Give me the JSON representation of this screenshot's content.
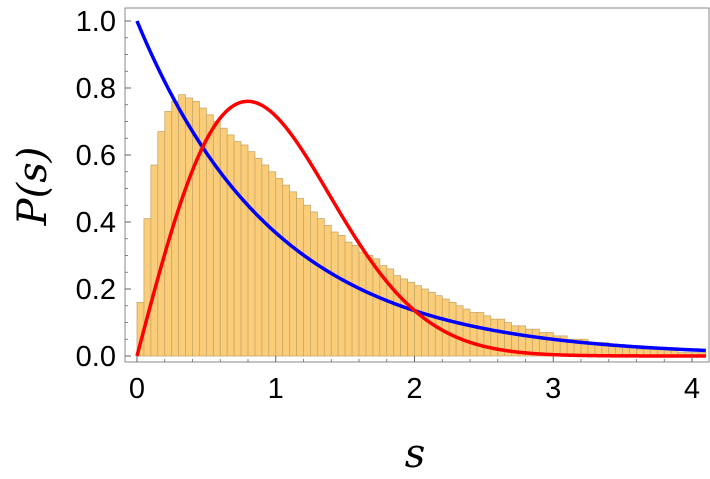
{
  "chart_data": {
    "type": "histogram-with-curves",
    "xlabel": "s",
    "ylabel": "P(s)",
    "xlim": [
      0,
      4.1
    ],
    "ylim": [
      0,
      1.05
    ],
    "xticks": [
      "0",
      "1",
      "2",
      "3",
      "4"
    ],
    "yticks": [
      "0.0",
      "0.2",
      "0.4",
      "0.6",
      "0.8",
      "1.0"
    ],
    "grid": false,
    "histogram": {
      "bin_width": 0.05,
      "bin_start": 0,
      "values": [
        0.16,
        0.41,
        0.57,
        0.67,
        0.73,
        0.76,
        0.78,
        0.77,
        0.76,
        0.74,
        0.72,
        0.7,
        0.68,
        0.66,
        0.64,
        0.63,
        0.61,
        0.59,
        0.57,
        0.55,
        0.53,
        0.51,
        0.49,
        0.47,
        0.45,
        0.43,
        0.41,
        0.39,
        0.37,
        0.36,
        0.34,
        0.33,
        0.31,
        0.3,
        0.29,
        0.27,
        0.26,
        0.24,
        0.23,
        0.22,
        0.21,
        0.2,
        0.19,
        0.18,
        0.17,
        0.16,
        0.15,
        0.14,
        0.13,
        0.13,
        0.12,
        0.11,
        0.11,
        0.1,
        0.09,
        0.09,
        0.08,
        0.08,
        0.07,
        0.07,
        0.06,
        0.06,
        0.05,
        0.05,
        0.05,
        0.04,
        0.04,
        0.04,
        0.03,
        0.03,
        0.03,
        0.03,
        0.02,
        0.02,
        0.02,
        0.02,
        0.02,
        0.02,
        0.01,
        0.01,
        0.01,
        0.01
      ]
    },
    "curves": [
      {
        "color": "#0000ff",
        "function": "exp(-s)"
      },
      {
        "color": "#ff0000",
        "function": "(pi/2) s exp(-pi s^2 / 4)"
      }
    ],
    "colors": {
      "bar_fill": "#fbcd78",
      "bar_stroke": "#c9a86a",
      "frame": "#8a8a8a"
    }
  }
}
